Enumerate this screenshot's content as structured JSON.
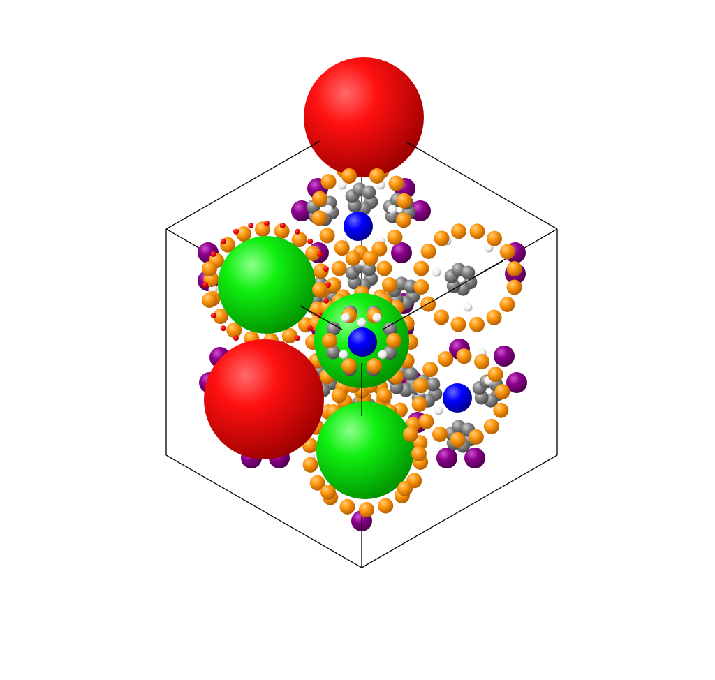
{
  "colors": {
    "background": "#ffffff",
    "cage_red": "#ff0000",
    "cage_green": "#00ee00",
    "metal_blue": "#0000ff",
    "oxygen_orange": "#ff8c00",
    "carbon_gray": "#808080",
    "hydrogen_white": "#ffffff",
    "halogen_purple": "#8b008b",
    "cell_edge": "#000000"
  },
  "legend": []
}
